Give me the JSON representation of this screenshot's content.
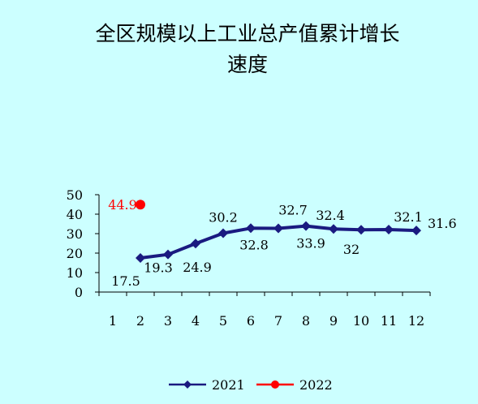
{
  "chart_data": {
    "type": "line",
    "title_lines": [
      "全区规模以上工业总产值累计增长",
      "速度"
    ],
    "categories": [
      "1",
      "2",
      "3",
      "4",
      "5",
      "6",
      "7",
      "8",
      "9",
      "10",
      "11",
      "12"
    ],
    "y_ticks": [
      "0",
      "10",
      "20",
      "30",
      "40",
      "50"
    ],
    "ylim": [
      0,
      50
    ],
    "grid": false,
    "legend_position": "bottom",
    "series": [
      {
        "name": "2021",
        "color": "#1a1a80",
        "marker": "diamond",
        "values": [
          null,
          17.5,
          19.3,
          24.9,
          30.2,
          32.8,
          32.7,
          33.9,
          32.4,
          32,
          32.1,
          31.6
        ],
        "labels": [
          null,
          "17.5",
          "19.3",
          "24.9",
          "30.2",
          "32.8",
          "32.7",
          "33.9",
          "32.4",
          "32",
          "32.1",
          "31.6"
        ]
      },
      {
        "name": "2022",
        "color": "#ff0000",
        "marker": "circle",
        "values": [
          null,
          44.9,
          null,
          null,
          null,
          null,
          null,
          null,
          null,
          null,
          null,
          null
        ],
        "labels": [
          null,
          "44.9",
          null,
          null,
          null,
          null,
          null,
          null,
          null,
          null,
          null,
          null
        ]
      }
    ]
  }
}
